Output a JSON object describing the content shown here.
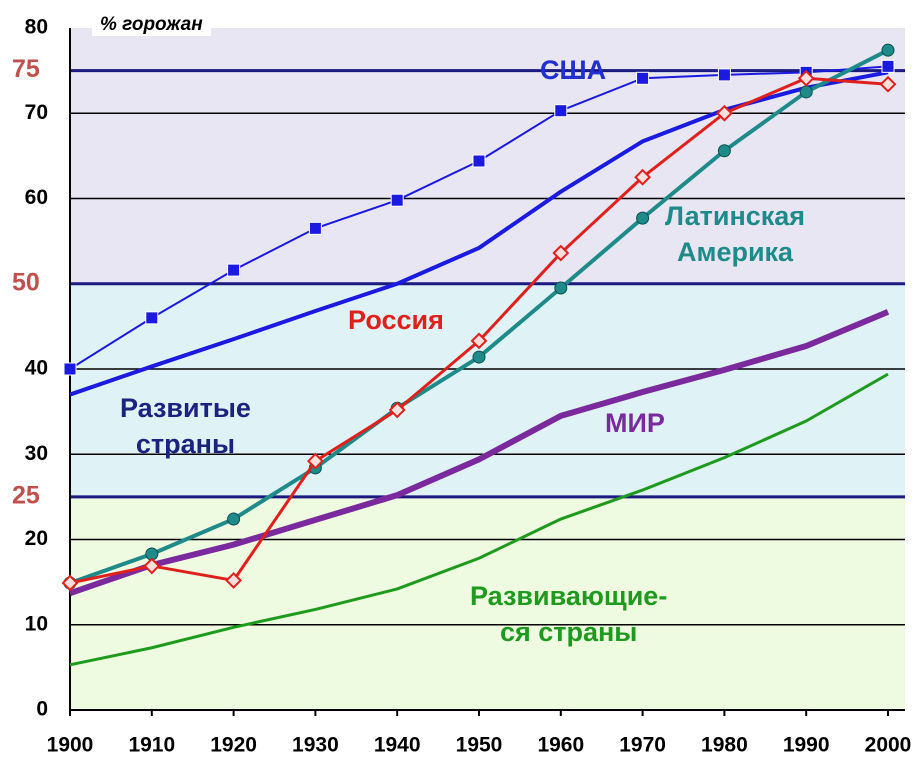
{
  "chart_data": {
    "type": "line",
    "y_label": "% горожан",
    "x": [
      1900,
      1910,
      1920,
      1930,
      1940,
      1950,
      1960,
      1970,
      1980,
      1990,
      2000
    ],
    "xlim": [
      1900,
      2000
    ],
    "xticks": [
      1900,
      1910,
      1920,
      1930,
      1940,
      1950,
      1960,
      1970,
      1980,
      1990,
      2000
    ],
    "ylim": [
      0,
      80
    ],
    "yticks": [
      0,
      10,
      20,
      25,
      30,
      40,
      50,
      60,
      70,
      75,
      80
    ],
    "highlight_ticks": [
      25,
      50,
      75
    ],
    "highlight_color": "#c0504d",
    "bands": [
      {
        "from": 0,
        "to": 25,
        "color": "#eefbe0"
      },
      {
        "from": 25,
        "to": 50,
        "color": "#dff3f6"
      },
      {
        "from": 50,
        "to": 80,
        "color": "#e8e6f3"
      }
    ],
    "grid": true,
    "series": [
      {
        "name": "Развивающие-\nся страны",
        "color": "#1e9a1e",
        "width": 3,
        "marker": "none",
        "values": [
          5.3,
          7.3,
          9.7,
          11.8,
          14.2,
          17.8,
          22.4,
          25.8,
          29.6,
          33.9,
          39.4
        ]
      },
      {
        "name": "МИР",
        "color": "#7b2a9e",
        "width": 6,
        "marker": "none",
        "values": [
          13.7,
          17,
          19.4,
          22.3,
          25.2,
          29.4,
          34.5,
          37.3,
          39.9,
          42.7,
          46.7
        ]
      },
      {
        "name": "Развитые\nстраны",
        "color": "#1a1ae0",
        "width": 4,
        "marker": "none",
        "values": [
          37,
          40.3,
          43.5,
          46.8,
          50,
          54.2,
          60.8,
          66.7,
          70.4,
          73,
          74.8
        ]
      },
      {
        "name": "США",
        "color": "#1a1ae0",
        "width": 2,
        "marker": "square",
        "values": [
          40,
          46,
          51.6,
          56.5,
          59.8,
          64.4,
          70.3,
          74.1,
          74.5,
          74.8,
          75.5
        ]
      },
      {
        "name": "Латинская\nАмерика",
        "color": "#1f8a8a",
        "width": 4,
        "marker": "circle",
        "values": [
          14.9,
          18.3,
          22.4,
          28.4,
          35.4,
          41.4,
          49.5,
          57.7,
          65.6,
          72.5,
          77.4
        ]
      },
      {
        "name": "Россия",
        "color": "#e0201c",
        "width": 3,
        "marker": "diamond",
        "values": [
          14.9,
          16.9,
          15.2,
          29.2,
          35.2,
          43.3,
          53.6,
          62.5,
          70,
          74.1,
          73.4
        ]
      }
    ]
  }
}
